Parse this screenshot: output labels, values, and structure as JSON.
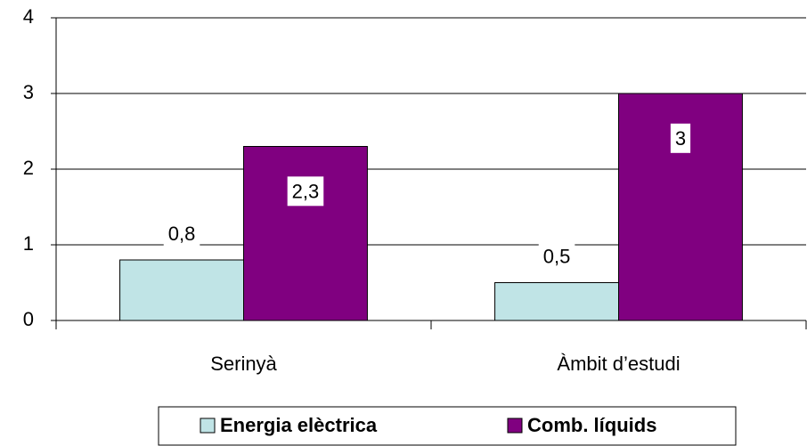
{
  "chart_data": {
    "type": "bar",
    "categories": [
      "Serinyà",
      "Àmbit d’estudi"
    ],
    "series": [
      {
        "name": "Energia elèctrica",
        "color": "#c0e4e6",
        "values": [
          0.8,
          0.5
        ],
        "value_labels": [
          "0,8",
          "0,5"
        ]
      },
      {
        "name": "Comb. líquids",
        "color": "#800080",
        "values": [
          2.3,
          3
        ],
        "value_labels": [
          "2,3",
          "3"
        ]
      }
    ],
    "ylim": [
      0,
      4
    ],
    "yticks": [
      0,
      1,
      2,
      3,
      4
    ],
    "grid": true,
    "legend": "bottom"
  }
}
